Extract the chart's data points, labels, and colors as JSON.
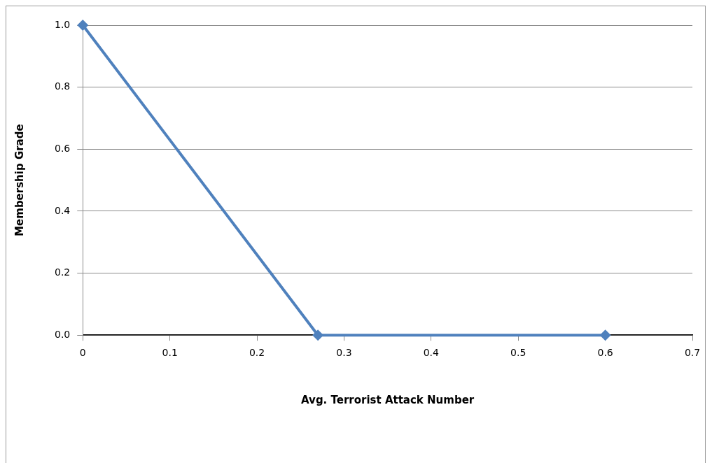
{
  "chart_data": {
    "type": "line",
    "xlabel": "Avg. Terrorist Attack Number",
    "ylabel": "Membership Grade",
    "x": [
      0,
      0.27,
      0.6
    ],
    "series": [
      {
        "color": "#4f81bd",
        "values": [
          1,
          0,
          0
        ]
      }
    ],
    "xlim": [
      0,
      0.7
    ],
    "xticks": [
      0,
      0.1,
      0.2,
      0.3,
      0.4,
      0.5,
      0.6,
      0.7
    ],
    "ylim": [
      0,
      1
    ],
    "yticks": [
      {
        "value": 0,
        "label": "0.0"
      },
      {
        "value": 0.2,
        "label": "0.2"
      },
      {
        "value": 0.4,
        "label": "0.4"
      },
      {
        "value": 0.6,
        "label": "0.6"
      },
      {
        "value": 0.8,
        "label": "0.8"
      },
      {
        "value": 1,
        "label": "1.0"
      }
    ],
    "grid": "y",
    "legend": false,
    "marker": "diamond",
    "line_style": "solid"
  }
}
